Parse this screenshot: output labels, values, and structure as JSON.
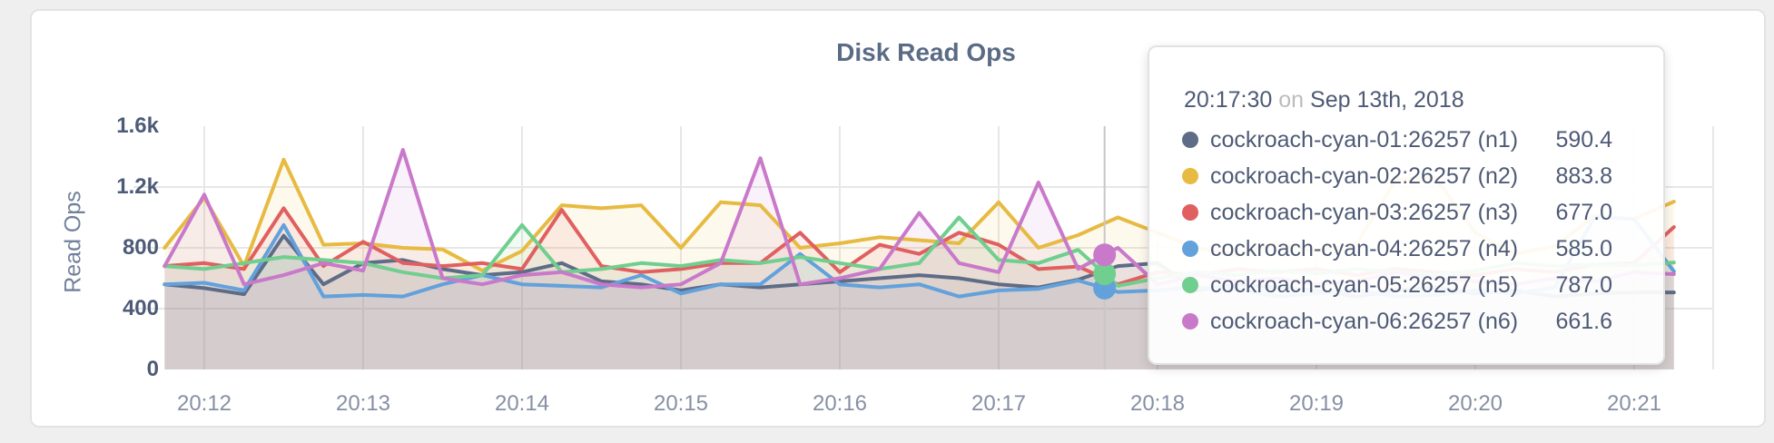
{
  "chart": {
    "title": "Disk Read Ops",
    "y_axis_label": "Read Ops",
    "y_ticks": [
      {
        "label": "1.6k",
        "value": 1600
      },
      {
        "label": "1.2k",
        "value": 1200
      },
      {
        "label": "800",
        "value": 800
      },
      {
        "label": "400",
        "value": 400
      },
      {
        "label": "0",
        "value": 0
      }
    ],
    "x_ticks": [
      "20:12",
      "20:13",
      "20:14",
      "20:15",
      "20:16",
      "20:17",
      "20:18",
      "20:19",
      "20:20",
      "20:21"
    ]
  },
  "chart_data": {
    "type": "area",
    "title": "Disk Read Ops",
    "xlabel": "time",
    "ylabel": "Read Ops",
    "ylim": [
      0,
      1600
    ],
    "grid": true,
    "x": [
      "20:11:45",
      "20:12:00",
      "20:12:15",
      "20:12:30",
      "20:12:45",
      "20:13:00",
      "20:13:15",
      "20:13:30",
      "20:13:45",
      "20:14:00",
      "20:14:15",
      "20:14:30",
      "20:14:45",
      "20:15:00",
      "20:15:15",
      "20:15:30",
      "20:15:45",
      "20:16:00",
      "20:16:15",
      "20:16:30",
      "20:16:45",
      "20:17:00",
      "20:17:15",
      "20:17:30",
      "20:17:45",
      "20:18:00",
      "20:18:15",
      "20:18:30",
      "20:18:45",
      "20:19:00",
      "20:19:15",
      "20:19:30",
      "20:19:45",
      "20:20:00",
      "20:20:15",
      "20:20:30",
      "20:20:45",
      "20:21:00",
      "20:21:15"
    ],
    "series": [
      {
        "name": "cockroach-cyan-01:26257 (n1)",
        "color": "#5f6c87",
        "values": [
          560,
          535,
          495,
          880,
          560,
          700,
          720,
          660,
          620,
          640,
          700,
          580,
          560,
          520,
          560,
          540,
          560,
          580,
          600,
          620,
          600,
          560,
          540,
          590.4,
          680,
          700,
          520,
          560,
          540,
          520,
          480,
          520,
          540,
          500,
          520,
          480,
          500,
          507,
          507
        ]
      },
      {
        "name": "cockroach-cyan-02:26257 (n2)",
        "color": "#e7ba42",
        "values": [
          800,
          1130,
          680,
          1380,
          820,
          830,
          800,
          790,
          650,
          780,
          1080,
          1060,
          1080,
          800,
          1100,
          1080,
          800,
          830,
          870,
          850,
          830,
          1100,
          800,
          883.8,
          1000,
          900,
          800,
          750,
          830,
          780,
          820,
          1250,
          1260,
          900,
          760,
          810,
          1010,
          990,
          1104
        ]
      },
      {
        "name": "cockroach-cyan-03:26257 (n3)",
        "color": "#e06060",
        "values": [
          680,
          700,
          660,
          1060,
          680,
          840,
          700,
          680,
          700,
          660,
          1050,
          680,
          640,
          660,
          700,
          700,
          900,
          640,
          820,
          760,
          900,
          820,
          660,
          677.0,
          560,
          640,
          620,
          660,
          640,
          660,
          620,
          660,
          640,
          620,
          660,
          640,
          690,
          700,
          937
        ]
      },
      {
        "name": "cockroach-cyan-04:26257 (n4)",
        "color": "#62a1db",
        "values": [
          560,
          570,
          520,
          950,
          480,
          490,
          480,
          560,
          620,
          560,
          550,
          540,
          620,
          500,
          560,
          560,
          760,
          560,
          540,
          560,
          480,
          520,
          530,
          585.0,
          510,
          520,
          540,
          530,
          480,
          500,
          520,
          480,
          490,
          520,
          500,
          540,
          1000,
          990,
          645
        ]
      },
      {
        "name": "cockroach-cyan-05:26257 (n5)",
        "color": "#70ce8f",
        "values": [
          680,
          660,
          700,
          740,
          720,
          700,
          640,
          600,
          620,
          950,
          640,
          660,
          700,
          680,
          720,
          700,
          740,
          700,
          660,
          700,
          1000,
          720,
          700,
          787.0,
          550,
          600,
          640,
          620,
          650,
          630,
          660,
          640,
          620,
          650,
          700,
          680,
          690,
          686,
          704
        ]
      },
      {
        "name": "cockroach-cyan-06:26257 (n6)",
        "color": "#c979c9",
        "values": [
          680,
          1150,
          560,
          620,
          700,
          650,
          1445,
          600,
          560,
          620,
          640,
          560,
          540,
          560,
          700,
          1390,
          560,
          600,
          660,
          1030,
          700,
          640,
          1230,
          661.6,
          800,
          560,
          620,
          580,
          600,
          560,
          580,
          640,
          600,
          580,
          560,
          600,
          580,
          640,
          627
        ]
      }
    ]
  },
  "hover": {
    "crosshair_time": "20:17:40",
    "dot_series_indexes": [
      3,
      4,
      5
    ]
  },
  "tooltip": {
    "time": "20:17:30",
    "conjunction": "on",
    "date": "Sep 13th, 2018",
    "rows": [
      {
        "label": "cockroach-cyan-01:26257 (n1)",
        "value": "590.4",
        "color": "#5f6c87"
      },
      {
        "label": "cockroach-cyan-02:26257 (n2)",
        "value": "883.8",
        "color": "#e7ba42"
      },
      {
        "label": "cockroach-cyan-03:26257 (n3)",
        "value": "677.0",
        "color": "#e06060"
      },
      {
        "label": "cockroach-cyan-04:26257 (n4)",
        "value": "585.0",
        "color": "#62a1db"
      },
      {
        "label": "cockroach-cyan-05:26257 (n5)",
        "value": "787.0",
        "color": "#70ce8f"
      },
      {
        "label": "cockroach-cyan-06:26257 (n6)",
        "value": "661.6",
        "color": "#c979c9"
      }
    ]
  },
  "style": {
    "grid_color": "#e7e7e7",
    "crosshair_color": "#c8c8c8",
    "area_fill_opacity": 0.095
  }
}
